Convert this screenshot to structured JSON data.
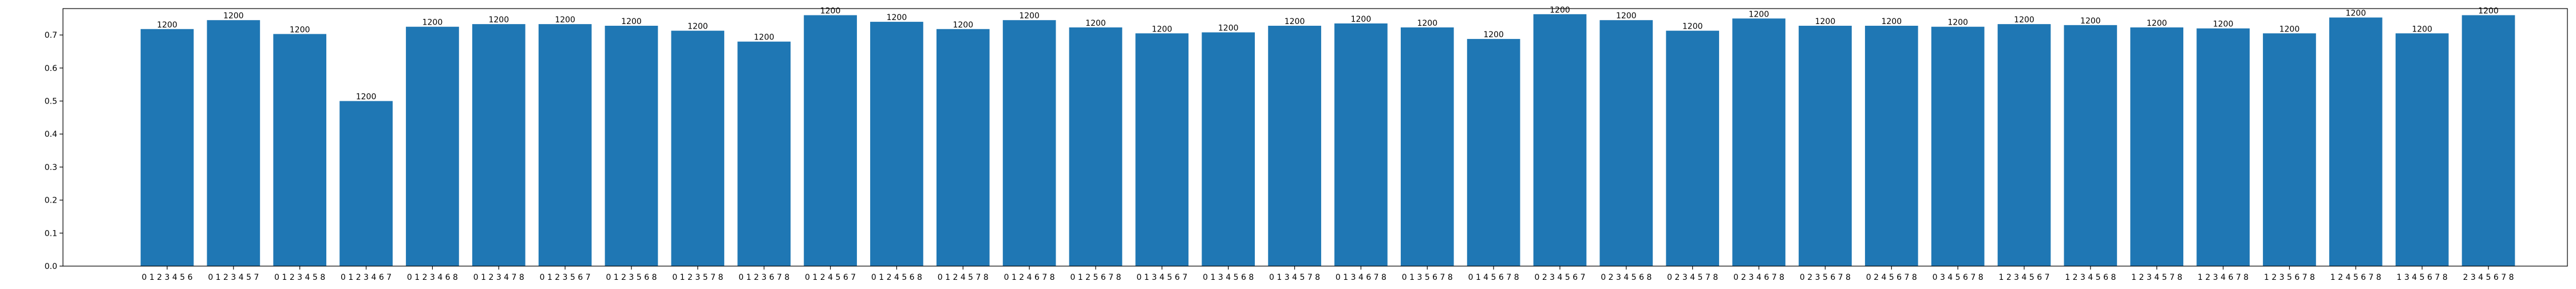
{
  "chart_data": {
    "type": "bar",
    "title": "",
    "xlabel": "",
    "ylabel": "",
    "ylim": [
      0,
      0.78
    ],
    "yticks": [
      0.0,
      0.1,
      0.2,
      0.3,
      0.4,
      0.5,
      0.6,
      0.7
    ],
    "ytick_labels": [
      "0.0",
      "0.1",
      "0.2",
      "0.3",
      "0.4",
      "0.5",
      "0.6",
      "0.7"
    ],
    "grid": false,
    "bar_color": "#1f77b4",
    "categories": [
      "0 1 2 3 4 5 6",
      "0 1 2 3 4 5 7",
      "0 1 2 3 4 5 8",
      "0 1 2 3 4 6 7",
      "0 1 2 3 4 6 8",
      "0 1 2 3 4 7 8",
      "0 1 2 3 5 6 7",
      "0 1 2 3 5 6 8",
      "0 1 2 3 5 7 8",
      "0 1 2 3 6 7 8",
      "0 1 2 4 5 6 7",
      "0 1 2 4 5 6 8",
      "0 1 2 4 5 7 8",
      "0 1 2 4 6 7 8",
      "0 1 2 5 6 7 8",
      "0 1 3 4 5 6 7",
      "0 1 3 4 5 6 8",
      "0 1 3 4 5 7 8",
      "0 1 3 4 6 7 8",
      "0 1 3 5 6 7 8",
      "0 1 4 5 6 7 8",
      "0 2 3 4 5 6 7",
      "0 2 3 4 5 6 8",
      "0 2 3 4 5 7 8",
      "0 2 3 4 6 7 8",
      "0 2 3 5 6 7 8",
      "0 2 4 5 6 7 8",
      "0 3 4 5 6 7 8",
      "1 2 3 4 5 6 7",
      "1 2 3 4 5 6 8",
      "1 2 3 4 5 7 8",
      "1 2 3 4 6 7 8",
      "1 2 3 5 6 7 8",
      "1 2 4 5 6 7 8",
      "1 3 4 5 6 7 8",
      "2 3 4 5 6 7 8"
    ],
    "values": [
      0.718,
      0.745,
      0.703,
      0.5,
      0.725,
      0.733,
      0.733,
      0.728,
      0.713,
      0.68,
      0.76,
      0.74,
      0.718,
      0.745,
      0.723,
      0.705,
      0.708,
      0.728,
      0.735,
      0.723,
      0.688,
      0.763,
      0.745,
      0.713,
      0.75,
      0.728,
      0.728,
      0.725,
      0.733,
      0.73,
      0.723,
      0.72,
      0.705,
      0.753,
      0.705,
      0.76
    ],
    "bar_labels": [
      "1200",
      "1200",
      "1200",
      "1200",
      "1200",
      "1200",
      "1200",
      "1200",
      "1200",
      "1200",
      "1200",
      "1200",
      "1200",
      "1200",
      "1200",
      "1200",
      "1200",
      "1200",
      "1200",
      "1200",
      "1200",
      "1200",
      "1200",
      "1200",
      "1200",
      "1200",
      "1200",
      "1200",
      "1200",
      "1200",
      "1200",
      "1200",
      "1200",
      "1200",
      "1200",
      "1200"
    ]
  }
}
